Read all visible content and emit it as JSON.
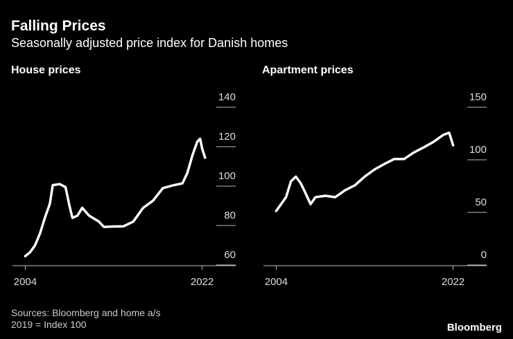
{
  "title": "Falling Prices",
  "subtitle": "Seasonally adjusted price index for Danish homes",
  "source": "Sources: Bloomberg and home a/s",
  "note": "2019 = Index 100",
  "logo": "Bloomberg",
  "chart_data": [
    {
      "type": "line",
      "title": "House prices",
      "color": "#ffffff",
      "x": [
        2004,
        2004.5,
        2005,
        2005.5,
        2006,
        2006.5,
        2006.8,
        2007.5,
        2008.1,
        2008.5,
        2008.8,
        2009.3,
        2009.8,
        2010.5,
        2011.5,
        2012,
        2013,
        2014,
        2015,
        2016,
        2017,
        2018,
        2019,
        2020,
        2020.5,
        2021,
        2021.5,
        2021.8,
        2022,
        2022.3
      ],
      "values": [
        64.5,
        66.5,
        70,
        76,
        84,
        91,
        100.5,
        101,
        99.5,
        90,
        83.9,
        85,
        89,
        85,
        82,
        79.3,
        79.5,
        79.6,
        82,
        89,
        92.6,
        99,
        100.3,
        101.4,
        106.7,
        115.4,
        122.5,
        124,
        119,
        114.4
      ],
      "xlim": [
        2002.7,
        2023.3
      ],
      "xticks": [
        2004,
        2022
      ],
      "ylim": [
        60,
        140
      ],
      "yticks": [
        60,
        80,
        100,
        120,
        140
      ]
    },
    {
      "type": "line",
      "title": "Apartment prices",
      "color": "#ffffff",
      "x": [
        2004,
        2005,
        2005.5,
        2006,
        2006.5,
        2007,
        2007.5,
        2008,
        2009,
        2010,
        2011,
        2012,
        2013,
        2014,
        2015,
        2016,
        2017,
        2018,
        2019,
        2020,
        2021,
        2021.6,
        2022
      ],
      "values": [
        51.3,
        64.5,
        79.6,
        84,
        77.6,
        67.8,
        57.9,
        64.5,
        65.8,
        64.5,
        71,
        75.7,
        84,
        90.8,
        96,
        100.7,
        100.7,
        107,
        111.8,
        117,
        123.7,
        125.7,
        113.8
      ],
      "xlim": [
        2002.7,
        2023.3
      ],
      "xticks": [
        2004,
        2022
      ],
      "ylim": [
        0,
        150
      ],
      "yticks": [
        0,
        50,
        100,
        150
      ]
    }
  ]
}
